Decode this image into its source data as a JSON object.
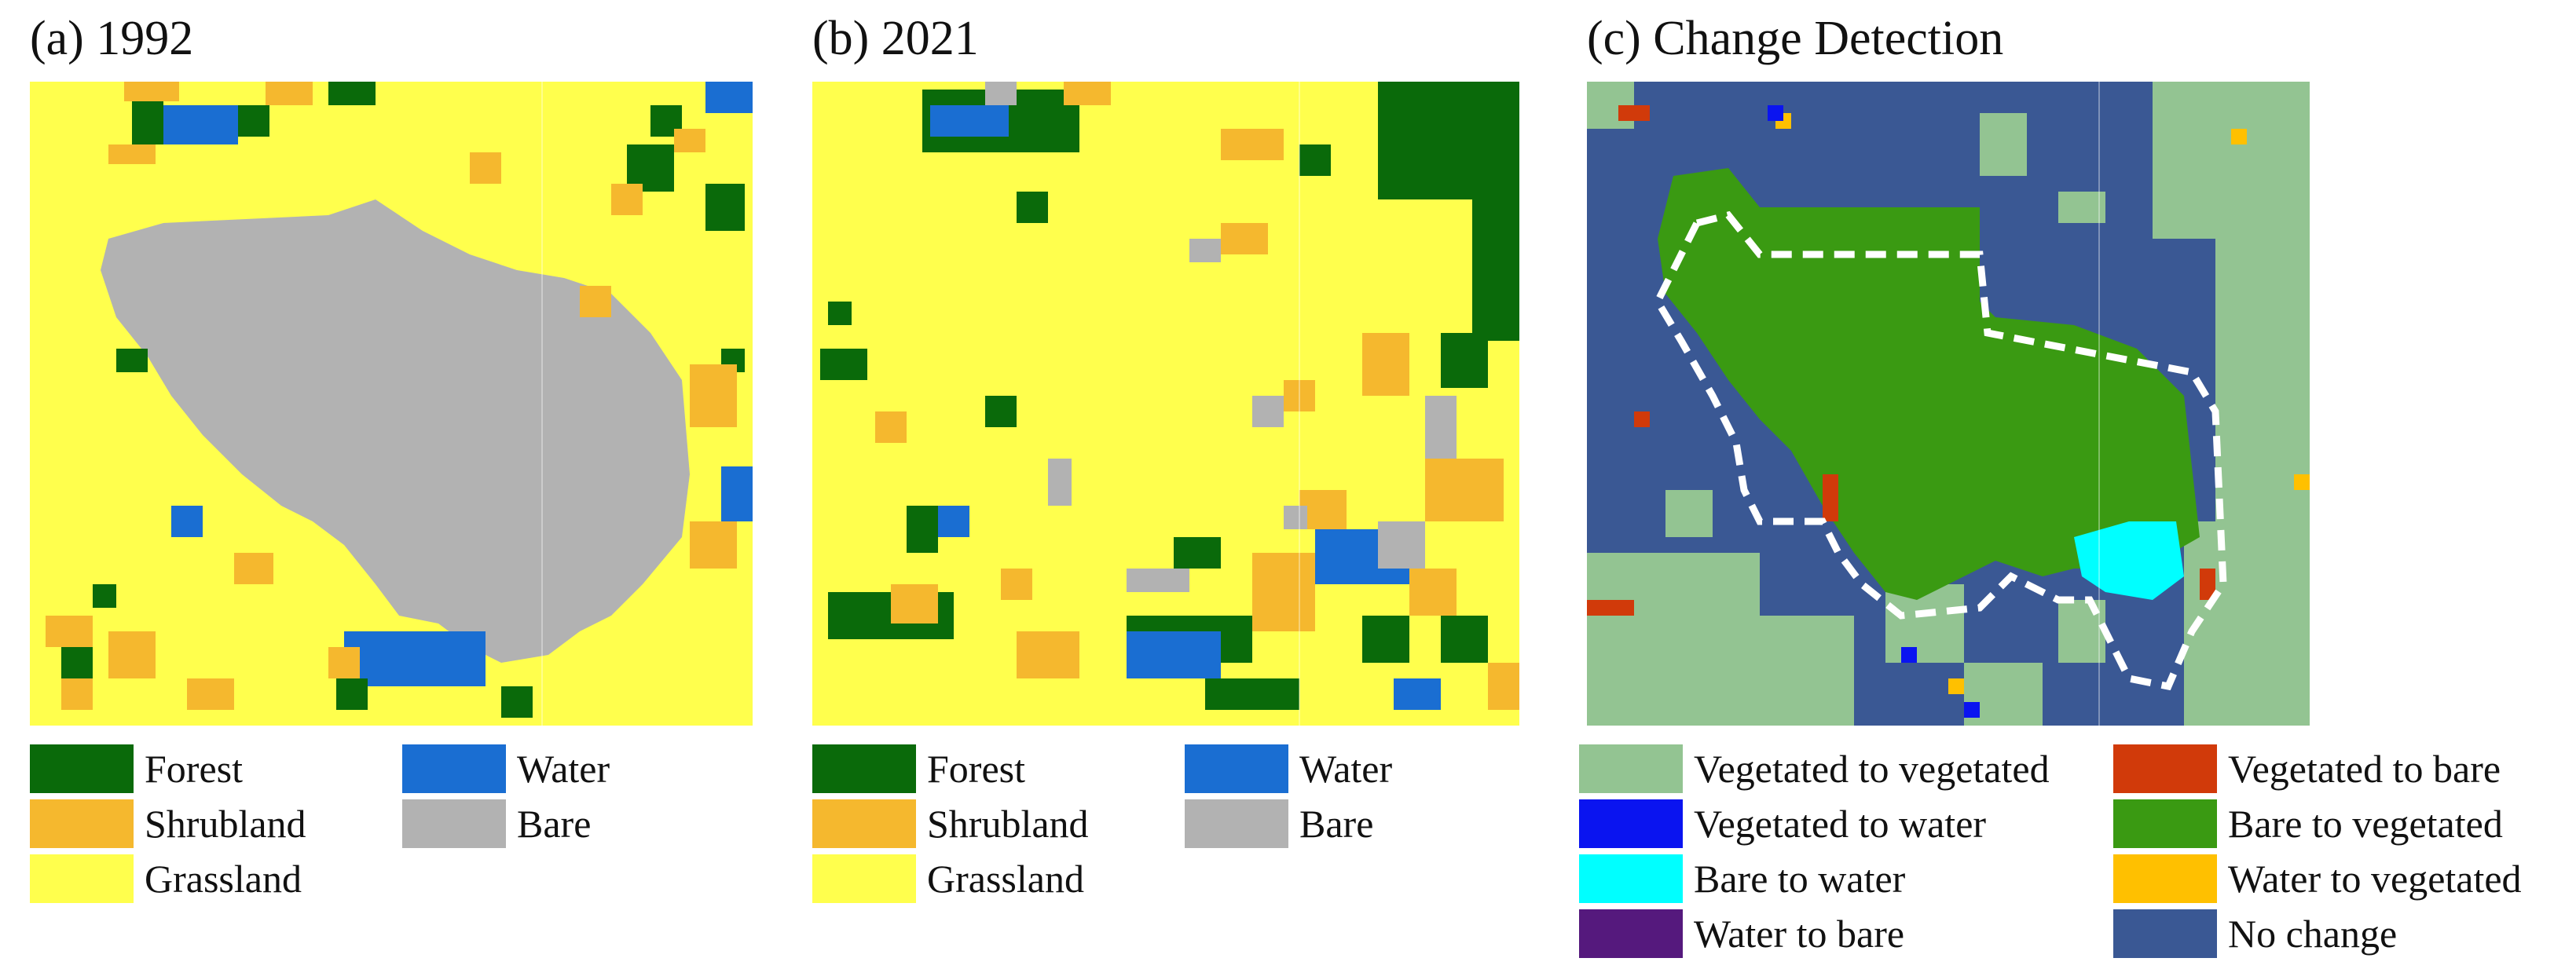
{
  "panels": [
    {
      "title": "(a) 1992"
    },
    {
      "title": "(b) 2021"
    },
    {
      "title": "(c) Change Detection"
    }
  ],
  "colors": {
    "forest": "#0a6a0a",
    "shrubland": "#f5b82e",
    "grassland": "#ffff4d",
    "water": "#1a6ed2",
    "bare": "#b2b2b2",
    "veg_to_veg": "#93c492",
    "veg_to_water": "#0a14f0",
    "bare_to_water": "#00ffff",
    "water_to_bare": "#55197d",
    "veg_to_bare": "#d13a0a",
    "bare_to_veg": "#3a9a12",
    "water_to_veg": "#ffc000",
    "no_change": "#3a5894",
    "boundary": "#ffffff"
  },
  "landcover_legend": [
    {
      "label": "Forest",
      "color": "#0a6a0a"
    },
    {
      "label": "Water",
      "color": "#1a6ed2"
    },
    {
      "label": "Shrubland",
      "color": "#f5b82e"
    },
    {
      "label": "Bare",
      "color": "#b2b2b2"
    },
    {
      "label": "Grassland",
      "color": "#ffff4d"
    }
  ],
  "change_legend": [
    {
      "label": "Vegetated to vegetated",
      "color": "#93c492"
    },
    {
      "label": "Vegetated to bare",
      "color": "#d13a0a"
    },
    {
      "label": "Vegetated to water",
      "color": "#0a14f0"
    },
    {
      "label": "Bare to vegetated",
      "color": "#3a9a12"
    },
    {
      "label": "Bare to water",
      "color": "#00ffff"
    },
    {
      "label": "Water to vegetated",
      "color": "#ffc000"
    },
    {
      "label": "Water to bare",
      "color": "#55197d"
    },
    {
      "label": "No change",
      "color": "#3a5894"
    }
  ]
}
